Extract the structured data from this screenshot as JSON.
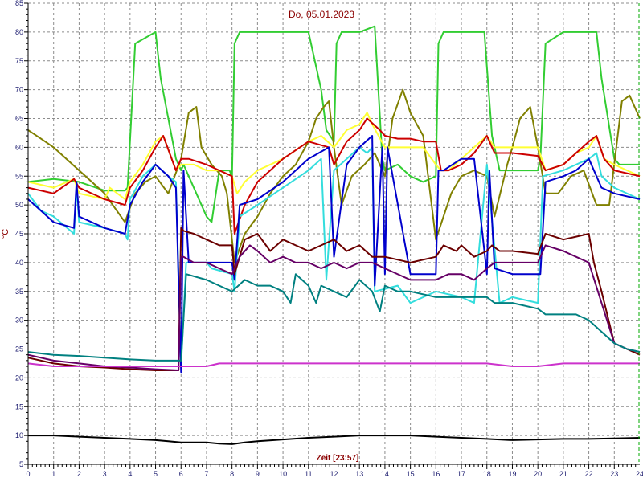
{
  "chart_data": {
    "type": "line",
    "title": "Do, 05.01.2023",
    "xlabel": "Zeit [23:57]",
    "ylabel": "°C",
    "xlim": [
      0,
      24
    ],
    "ylim": [
      5,
      85
    ],
    "xticks": [
      0,
      1,
      2,
      3,
      4,
      5,
      6,
      7,
      8,
      9,
      10,
      11,
      12,
      13,
      14,
      15,
      16,
      17,
      18,
      19,
      20,
      21,
      22,
      23,
      24
    ],
    "yticks": [
      5,
      10,
      15,
      20,
      25,
      30,
      35,
      40,
      45,
      50,
      55,
      60,
      65,
      70,
      75,
      80,
      85
    ],
    "grid": true,
    "series": [
      {
        "color": "#32cd32",
        "x": [
          0,
          1,
          2,
          3,
          3.8,
          3.9,
          4.2,
          5.0,
          5.2,
          5.8,
          6.0,
          6.1,
          6.3,
          7.0,
          7.2,
          7.5,
          7.9,
          8.0,
          8.1,
          8.3,
          9,
          10,
          11,
          11.5,
          11.7,
          12.0,
          12.1,
          12.3,
          13.0,
          13.6,
          13.9,
          14.0,
          14.5,
          15.0,
          15.5,
          16.0,
          16.1,
          16.3,
          17.0,
          17.9,
          18.2,
          18.5,
          19,
          19.5,
          20.0,
          20.1,
          20.3,
          21.0,
          22.0,
          22.3,
          22.5,
          23.0,
          23.2,
          24
        ],
        "y": [
          54,
          54.5,
          54,
          52.5,
          52.5,
          53,
          78,
          80,
          72,
          58,
          56,
          57,
          55,
          48,
          47,
          56,
          56,
          55,
          78,
          80,
          80,
          80,
          80,
          70,
          63,
          61,
          78,
          80,
          80,
          81,
          58,
          56,
          57,
          55,
          54,
          55,
          78,
          80,
          80,
          80,
          62,
          56,
          56,
          56,
          56,
          58,
          78,
          80,
          80,
          80,
          72,
          58,
          57,
          57
        ]
      },
      {
        "color": "#808000",
        "x": [
          0,
          0.5,
          1,
          2,
          3,
          3.8,
          4.2,
          4.6,
          5.0,
          5.5,
          6.0,
          6.3,
          6.6,
          6.8,
          7.2,
          7.6,
          7.8,
          8.1,
          8.5,
          9,
          9.5,
          10,
          10.5,
          11,
          11.3,
          11.6,
          11.8,
          12.0,
          12.3,
          12.7,
          13.2,
          13.6,
          14.0,
          14.3,
          14.7,
          15.0,
          15.5,
          16.0,
          16.3,
          16.6,
          17.0,
          17.5,
          18.0,
          18.3,
          18.8,
          19.0,
          19.3,
          19.7,
          20.0,
          20.3,
          20.8,
          21.3,
          21.8,
          22.3,
          22.8,
          23.3,
          23.6,
          24
        ],
        "y": [
          63,
          61.5,
          60,
          56,
          52,
          47,
          52,
          54,
          55,
          52,
          58,
          66,
          67,
          60,
          57,
          55,
          52,
          40,
          45,
          48,
          52,
          55,
          57,
          61,
          65,
          67,
          68,
          60,
          50,
          55,
          57,
          59,
          55,
          65,
          70,
          66,
          62,
          44,
          48,
          52,
          55,
          56,
          55,
          48,
          57,
          60,
          65,
          67,
          60,
          52,
          52,
          55,
          56,
          50,
          50,
          68,
          69,
          65
        ]
      },
      {
        "color": "#ffff33",
        "x": [
          0,
          1,
          1.8,
          2,
          3,
          3.2,
          3.8,
          4,
          4.5,
          5,
          5.3,
          5.8,
          6,
          6.5,
          7,
          7.5,
          8,
          8.2,
          8.5,
          9,
          10,
          11,
          11.5,
          12,
          12.5,
          13,
          13.3,
          13.5,
          14,
          14.5,
          15,
          15.5,
          16,
          16.2,
          16.5,
          17,
          17.5,
          18,
          18.3,
          19,
          20,
          20.3,
          21,
          21.5,
          22,
          22.3,
          22.6,
          23,
          24
        ],
        "y": [
          54,
          53,
          54.5,
          52,
          51,
          53,
          51,
          54,
          57,
          61,
          62,
          56,
          57,
          57,
          56,
          56,
          55,
          52,
          54,
          56,
          58,
          61,
          62,
          60,
          63,
          64,
          66,
          64,
          60,
          60,
          60,
          60,
          57,
          56,
          56,
          58,
          60,
          62,
          60,
          60,
          60,
          56,
          57,
          59,
          60,
          62,
          58,
          57,
          55
        ]
      },
      {
        "color": "#cc0000",
        "x": [
          0,
          1,
          1.8,
          2,
          3,
          3.8,
          4,
          4.5,
          5,
          5.3,
          5.8,
          6,
          6.3,
          7,
          8,
          8.1,
          8.5,
          9,
          10,
          11,
          11.8,
          12,
          12.5,
          13,
          13.3,
          13.8,
          14,
          14.5,
          15,
          15.5,
          16,
          16.2,
          16.5,
          17,
          17.5,
          18,
          18.3,
          19,
          20,
          20.3,
          21,
          21.5,
          22,
          22.3,
          22.6,
          23,
          24
        ],
        "y": [
          53,
          52,
          54.5,
          53,
          51,
          50,
          53,
          56,
          60,
          62,
          56,
          58,
          58,
          57,
          55,
          45,
          50,
          54,
          58,
          61,
          60,
          57,
          61,
          63,
          65,
          63,
          62,
          61.5,
          61.5,
          61,
          61,
          56,
          56,
          57,
          59,
          62,
          59,
          59,
          58.5,
          56,
          57,
          59,
          61,
          62,
          58,
          56,
          55
        ]
      },
      {
        "color": "#33dddd",
        "x": [
          0,
          0.5,
          1,
          1.8,
          1.9,
          2,
          3,
          3.8,
          3.9,
          4,
          4.5,
          5,
          5.5,
          5.8,
          6.0,
          6.2,
          7,
          7.2,
          8.0,
          8.1,
          8.3,
          9,
          10,
          11,
          11.5,
          11.7,
          12,
          12.5,
          13,
          13.3,
          13.5,
          13.6,
          14.5,
          15,
          16,
          17,
          17.5,
          18.0,
          18.5,
          19,
          20.0,
          20.2,
          21,
          21.5,
          22,
          22.3,
          22.5,
          23,
          24
        ],
        "y": [
          52,
          49,
          48,
          45,
          53,
          47,
          46,
          45,
          44,
          51,
          55,
          57,
          55,
          54,
          22,
          40,
          40,
          39,
          38,
          35,
          48,
          50,
          53,
          56,
          58,
          37,
          56,
          58,
          60,
          59,
          60,
          35,
          36,
          33,
          35,
          34,
          33,
          57,
          33,
          34,
          33,
          55,
          56,
          57,
          58,
          59,
          55,
          53,
          51
        ]
      },
      {
        "color": "#0000cc",
        "x": [
          0,
          0.5,
          1,
          1.8,
          1.9,
          2,
          3,
          3.8,
          4,
          4.5,
          5,
          5.5,
          5.8,
          6.0,
          6.1,
          6.3,
          7,
          8,
          8.1,
          8.3,
          9,
          10,
          11,
          11.8,
          12,
          12.5,
          13,
          13.5,
          13.6,
          13.9,
          14.0,
          14.1,
          15,
          16,
          16.1,
          16.3,
          17,
          17.5,
          18.0,
          18.1,
          18.3,
          19,
          20.0,
          20.1,
          20.3,
          21,
          21.5,
          22,
          22.3,
          22.5,
          23,
          24
        ],
        "y": [
          51,
          49,
          47,
          46,
          54,
          48,
          46,
          45,
          50,
          54,
          57,
          55,
          53,
          21,
          56,
          40,
          40,
          40,
          37,
          50,
          51,
          54,
          58,
          60,
          41,
          57,
          60,
          62,
          36,
          60,
          38,
          60,
          38,
          38,
          56,
          56,
          58,
          58,
          38,
          56,
          39,
          38,
          38,
          38,
          54,
          55,
          56,
          58,
          55,
          53,
          52,
          51
        ]
      },
      {
        "color": "#6b0000",
        "x": [
          0,
          1,
          2,
          3,
          4,
          5,
          5.9,
          6.0,
          6.1,
          6.5,
          7,
          7.5,
          8.0,
          8.1,
          8.5,
          9,
          9.5,
          10,
          10.5,
          11,
          11.5,
          12,
          12.5,
          13,
          13.5,
          14,
          15,
          16,
          16.3,
          16.8,
          17,
          17.5,
          18,
          18.2,
          18.5,
          19,
          20,
          20.3,
          21,
          21.5,
          22,
          22.2,
          22.5,
          23,
          23.5,
          24
        ],
        "y": [
          23.5,
          22.5,
          22,
          21.8,
          21.5,
          21.3,
          21.3,
          46,
          45.5,
          45,
          44,
          43,
          43,
          38,
          44,
          45,
          42,
          44,
          43,
          42,
          43,
          44,
          42,
          43,
          41,
          41,
          40,
          41,
          43,
          42,
          43,
          41,
          42,
          43,
          42,
          42,
          41.5,
          45,
          44,
          44.5,
          45,
          40,
          35,
          26,
          25,
          24
        ]
      },
      {
        "color": "#660066",
        "x": [
          0,
          1,
          2,
          3,
          4,
          5,
          5.9,
          6.0,
          6.1,
          6.5,
          7,
          7.5,
          8,
          8.3,
          8.7,
          9,
          9.5,
          10,
          10.5,
          11,
          11.5,
          12,
          12.5,
          13,
          13.5,
          14,
          15,
          16,
          16.5,
          17,
          17.5,
          18,
          18.3,
          19,
          20,
          20.3,
          21,
          21.5,
          22,
          22.5,
          23,
          23.5,
          24
        ],
        "y": [
          24,
          23,
          22.5,
          22,
          21.8,
          21.5,
          21.3,
          41,
          41,
          40,
          40,
          39,
          38,
          41,
          43,
          42,
          40,
          41,
          40,
          40,
          39,
          40,
          39,
          40,
          40,
          39,
          37,
          37,
          38,
          38,
          37,
          39,
          40,
          40,
          40,
          43,
          42,
          41,
          40,
          33,
          26,
          25,
          24.5
        ]
      },
      {
        "color": "#008080",
        "x": [
          0,
          1,
          2,
          3,
          4,
          5,
          5.9,
          6.0,
          6.2,
          7,
          7.5,
          8,
          8.5,
          9,
          9.5,
          10,
          10.3,
          10.5,
          11,
          11.3,
          11.5,
          12,
          12.5,
          13,
          13.5,
          13.8,
          14,
          14.5,
          15,
          16,
          17,
          18,
          18.3,
          19,
          20,
          20.3,
          21,
          21.5,
          22,
          22.5,
          23,
          23.5,
          24
        ],
        "y": [
          24.5,
          24,
          23.8,
          23.5,
          23.2,
          23,
          23,
          23,
          38,
          37,
          36,
          35,
          37,
          36,
          36,
          35,
          33,
          38,
          36,
          33,
          36,
          35,
          34,
          37,
          35,
          31.5,
          36,
          35,
          35,
          34,
          34,
          34,
          33,
          33,
          32,
          31,
          31,
          31,
          30,
          28,
          26,
          25,
          24.5
        ]
      },
      {
        "color": "#cc33cc",
        "x": [
          0,
          1,
          2,
          3,
          4,
          5,
          6,
          6.5,
          7,
          7.5,
          8,
          9,
          10,
          11,
          12,
          13,
          14,
          15,
          16,
          17,
          18,
          19,
          20,
          21,
          22,
          23,
          24
        ],
        "y": [
          22.5,
          22,
          22,
          22,
          22,
          22,
          22,
          22,
          22,
          22.5,
          22.5,
          22.5,
          22.5,
          22.5,
          22.5,
          22.5,
          22.5,
          22.5,
          22.5,
          22.5,
          22.5,
          22,
          22,
          22.5,
          22.5,
          22.5,
          22.5
        ]
      },
      {
        "color": "#000000",
        "x": [
          0,
          1,
          2,
          3,
          4,
          5,
          5.5,
          6,
          7,
          7.5,
          8,
          8.5,
          9,
          10,
          11,
          12,
          13,
          14,
          15,
          16,
          17,
          18,
          19,
          20,
          21,
          22,
          23,
          24
        ],
        "y": [
          10,
          10,
          9.8,
          9.6,
          9.4,
          9.2,
          9.0,
          8.8,
          8.8,
          8.6,
          8.5,
          8.8,
          9.0,
          9.3,
          9.6,
          9.8,
          10,
          10,
          10,
          9.8,
          9.6,
          9.4,
          9.2,
          9.3,
          9.4,
          9.4,
          9.5,
          9.6
        ]
      }
    ]
  }
}
